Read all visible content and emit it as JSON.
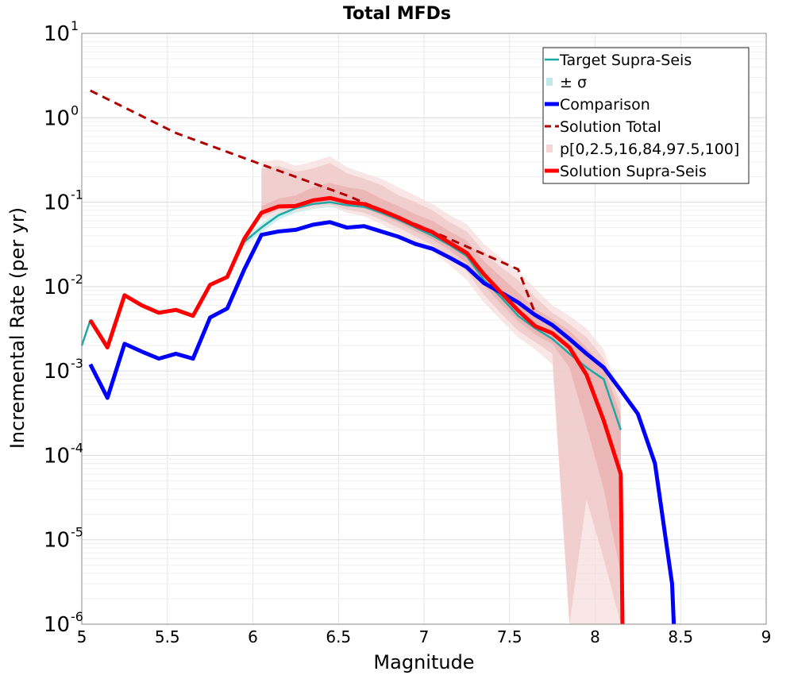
{
  "chart_data": {
    "type": "line",
    "title": "Total MFDs",
    "xlabel": "Magnitude",
    "ylabel": "Incremental Rate (per yr)",
    "xlim": [
      5,
      9
    ],
    "ylim": [
      1e-06,
      10
    ],
    "yscale": "log",
    "grid": true,
    "legend_position": "top-right",
    "x_ticks": [
      {
        "value": 5,
        "label": "5"
      },
      {
        "value": 5.5,
        "label": "5.5"
      },
      {
        "value": 6,
        "label": "6"
      },
      {
        "value": 6.5,
        "label": "6.5"
      },
      {
        "value": 7,
        "label": "7"
      },
      {
        "value": 7.5,
        "label": "7.5"
      },
      {
        "value": 8,
        "label": "8"
      },
      {
        "value": 8.5,
        "label": "8.5"
      },
      {
        "value": 9,
        "label": "9"
      }
    ],
    "y_ticks": [
      {
        "value": 10,
        "base": "10",
        "exp": "1"
      },
      {
        "value": 1,
        "base": "10",
        "exp": "0"
      },
      {
        "value": 0.1,
        "base": "10",
        "exp": "-1"
      },
      {
        "value": 0.01,
        "base": "10",
        "exp": "-2"
      },
      {
        "value": 0.001,
        "base": "10",
        "exp": "-3"
      },
      {
        "value": 0.0001,
        "base": "10",
        "exp": "-4"
      },
      {
        "value": 1e-05,
        "base": "10",
        "exp": "-5"
      },
      {
        "value": 1e-06,
        "base": "10",
        "exp": "-6"
      }
    ],
    "legend": [
      {
        "label": "Target Supra-Seis",
        "style": "line",
        "color": "#1fa8a8"
      },
      {
        "label": "± σ",
        "style": "box",
        "color": "#bfe8e8"
      },
      {
        "label": "Comparison",
        "style": "line-thick",
        "color": "#0000ff"
      },
      {
        "label": "Solution Total",
        "style": "dashed",
        "color": "#b00000"
      },
      {
        "label": "p[0,2.5,16,84,97.5,100]",
        "style": "box",
        "color": "#f4d4d4"
      },
      {
        "label": "Solution Supra-Seis",
        "style": "line-thick",
        "color": "#ff0000"
      }
    ],
    "series": [
      {
        "name": "Target Supra-Seis",
        "color": "#1fa8a8",
        "x": [
          5.0,
          5.05,
          5.15,
          5.25,
          5.35,
          5.45,
          5.55,
          5.65,
          5.75,
          5.85,
          5.95,
          6.05,
          6.15,
          6.25,
          6.35,
          6.45,
          6.55,
          6.65,
          6.75,
          6.85,
          6.95,
          7.05,
          7.15,
          7.25,
          7.35,
          7.45,
          7.55,
          7.65,
          7.75,
          7.85,
          7.95,
          8.05,
          8.15
        ],
        "y": [
          0.002,
          0.004,
          0.002,
          0.008,
          0.006,
          0.005,
          0.0053,
          0.0046,
          0.0105,
          0.013,
          0.034,
          0.05,
          0.07,
          0.085,
          0.095,
          0.1,
          0.092,
          0.088,
          0.075,
          0.062,
          0.05,
          0.04,
          0.031,
          0.023,
          0.012,
          0.0075,
          0.0045,
          0.0032,
          0.0024,
          0.0016,
          0.0011,
          0.0008,
          0.0002
        ]
      },
      {
        "name": "Comparison",
        "color": "#0000ff",
        "x": [
          5.05,
          5.15,
          5.25,
          5.35,
          5.45,
          5.55,
          5.65,
          5.75,
          5.85,
          5.95,
          6.05,
          6.15,
          6.25,
          6.35,
          6.45,
          6.55,
          6.65,
          6.75,
          6.85,
          6.95,
          7.05,
          7.15,
          7.25,
          7.35,
          7.45,
          7.55,
          7.65,
          7.75,
          7.85,
          7.95,
          8.05,
          8.15,
          8.25,
          8.35,
          8.45,
          8.46
        ],
        "y": [
          0.0012,
          0.00048,
          0.0021,
          0.0017,
          0.0014,
          0.0016,
          0.0014,
          0.0043,
          0.0055,
          0.016,
          0.041,
          0.045,
          0.047,
          0.054,
          0.058,
          0.05,
          0.052,
          0.045,
          0.039,
          0.032,
          0.028,
          0.022,
          0.017,
          0.011,
          0.0085,
          0.0065,
          0.0046,
          0.0035,
          0.0024,
          0.0016,
          0.0011,
          0.00059,
          0.00031,
          8e-05,
          3e-06,
          1e-06
        ]
      },
      {
        "name": "Solution Total",
        "color": "#b00000",
        "x": [
          5.05,
          5.55,
          6.05,
          6.55,
          7.05,
          7.55,
          7.65
        ],
        "y": [
          2.1,
          0.66,
          0.28,
          0.12,
          0.045,
          0.016,
          0.0048
        ]
      },
      {
        "name": "Solution Supra-Seis",
        "color": "#ff0000",
        "x": [
          5.05,
          5.15,
          5.25,
          5.35,
          5.45,
          5.55,
          5.65,
          5.75,
          5.85,
          5.95,
          6.05,
          6.15,
          6.25,
          6.35,
          6.45,
          6.55,
          6.65,
          6.75,
          6.85,
          6.95,
          7.05,
          7.15,
          7.25,
          7.35,
          7.45,
          7.55,
          7.65,
          7.75,
          7.85,
          7.95,
          8.05,
          8.15,
          8.16
        ],
        "y": [
          0.004,
          0.0019,
          0.0079,
          0.006,
          0.0049,
          0.0053,
          0.0045,
          0.0105,
          0.013,
          0.037,
          0.075,
          0.089,
          0.09,
          0.105,
          0.112,
          0.1,
          0.095,
          0.08,
          0.066,
          0.053,
          0.044,
          0.033,
          0.025,
          0.014,
          0.0085,
          0.0052,
          0.0034,
          0.0028,
          0.0019,
          0.0009,
          0.00026,
          6e-05,
          1e-06
        ]
      }
    ],
    "bands": [
      {
        "name": "± σ",
        "color": "#bfe8e8",
        "x": [
          5.95,
          6.05,
          6.15,
          6.25,
          6.35,
          6.45,
          6.55,
          6.65,
          6.75,
          6.85,
          6.95,
          7.05,
          7.15,
          7.25,
          7.35,
          7.45,
          7.55,
          7.65,
          7.75,
          7.85,
          7.95,
          8.05,
          8.15
        ],
        "lower": [
          0.03,
          0.044,
          0.062,
          0.075,
          0.083,
          0.087,
          0.08,
          0.076,
          0.064,
          0.053,
          0.042,
          0.034,
          0.026,
          0.019,
          0.0095,
          0.0058,
          0.0036,
          0.0025,
          0.0018,
          0.0012,
          0.0008,
          0.00055,
          0.00012
        ],
        "upper": [
          0.038,
          0.056,
          0.079,
          0.096,
          0.107,
          0.113,
          0.104,
          0.1,
          0.086,
          0.071,
          0.058,
          0.047,
          0.036,
          0.027,
          0.015,
          0.0095,
          0.0057,
          0.0041,
          0.0031,
          0.0021,
          0.0015,
          0.0011,
          0.0003
        ]
      },
      {
        "name": "p[0,2.5,16,84,97.5,100] outer",
        "color": "#f6dcdc",
        "x": [
          6.05,
          6.15,
          6.25,
          6.35,
          6.45,
          6.55,
          6.65,
          6.75,
          6.85,
          6.95,
          7.05,
          7.15,
          7.25,
          7.35,
          7.45,
          7.55,
          7.65,
          7.75,
          7.85,
          7.95,
          8.05,
          8.15
        ],
        "lower": [
          0.06,
          0.075,
          0.078,
          0.085,
          0.09,
          0.075,
          0.068,
          0.055,
          0.043,
          0.033,
          0.026,
          0.018,
          0.012,
          0.0065,
          0.004,
          0.0025,
          0.0018,
          0.0012,
          1e-06,
          1e-06,
          1e-06,
          1e-06
        ],
        "upper": [
          0.3,
          0.32,
          0.27,
          0.3,
          0.35,
          0.26,
          0.22,
          0.19,
          0.15,
          0.12,
          0.095,
          0.07,
          0.055,
          0.032,
          0.022,
          0.015,
          0.0095,
          0.006,
          0.0045,
          0.0032,
          0.0018,
          0.0005
        ]
      },
      {
        "name": "p[0,2.5,16,84,97.5,100] middle",
        "color": "#f0c4c4",
        "x": [
          6.05,
          6.15,
          6.25,
          6.35,
          6.45,
          6.55,
          6.65,
          6.75,
          6.85,
          6.95,
          7.05,
          7.15,
          7.25,
          7.35,
          7.45,
          7.55,
          7.65,
          7.75,
          7.85,
          7.95,
          8.05,
          8.15
        ],
        "lower": [
          0.065,
          0.08,
          0.082,
          0.09,
          0.095,
          0.082,
          0.075,
          0.062,
          0.05,
          0.039,
          0.031,
          0.022,
          0.015,
          0.008,
          0.0048,
          0.003,
          0.0022,
          0.0016,
          1e-06,
          3e-05,
          6e-06,
          1e-06
        ],
        "upper": [
          0.25,
          0.27,
          0.23,
          0.25,
          0.29,
          0.22,
          0.19,
          0.16,
          0.12,
          0.1,
          0.08,
          0.058,
          0.045,
          0.026,
          0.017,
          0.012,
          0.0075,
          0.0049,
          0.0036,
          0.0025,
          0.0014,
          0.0004
        ]
      },
      {
        "name": "p[0,2.5,16,84,97.5,100] inner",
        "color": "#e9acac",
        "x": [
          6.05,
          6.15,
          6.25,
          6.35,
          6.45,
          6.55,
          6.65,
          6.75,
          6.85,
          6.95,
          7.05,
          7.15,
          7.25,
          7.35,
          7.45,
          7.55,
          7.65,
          7.75,
          7.85,
          7.95,
          8.05,
          8.15
        ],
        "lower": [
          0.07,
          0.084,
          0.086,
          0.097,
          0.102,
          0.09,
          0.085,
          0.07,
          0.057,
          0.045,
          0.036,
          0.027,
          0.019,
          0.0105,
          0.0062,
          0.0039,
          0.0027,
          0.0021,
          0.0011,
          0.00022,
          4e-05,
          4e-06
        ],
        "upper": [
          0.09,
          0.11,
          0.12,
          0.15,
          0.17,
          0.15,
          0.14,
          0.11,
          0.09,
          0.072,
          0.06,
          0.045,
          0.035,
          0.02,
          0.013,
          0.0085,
          0.0055,
          0.0041,
          0.003,
          0.0019,
          0.0011,
          0.0003
        ]
      }
    ]
  }
}
